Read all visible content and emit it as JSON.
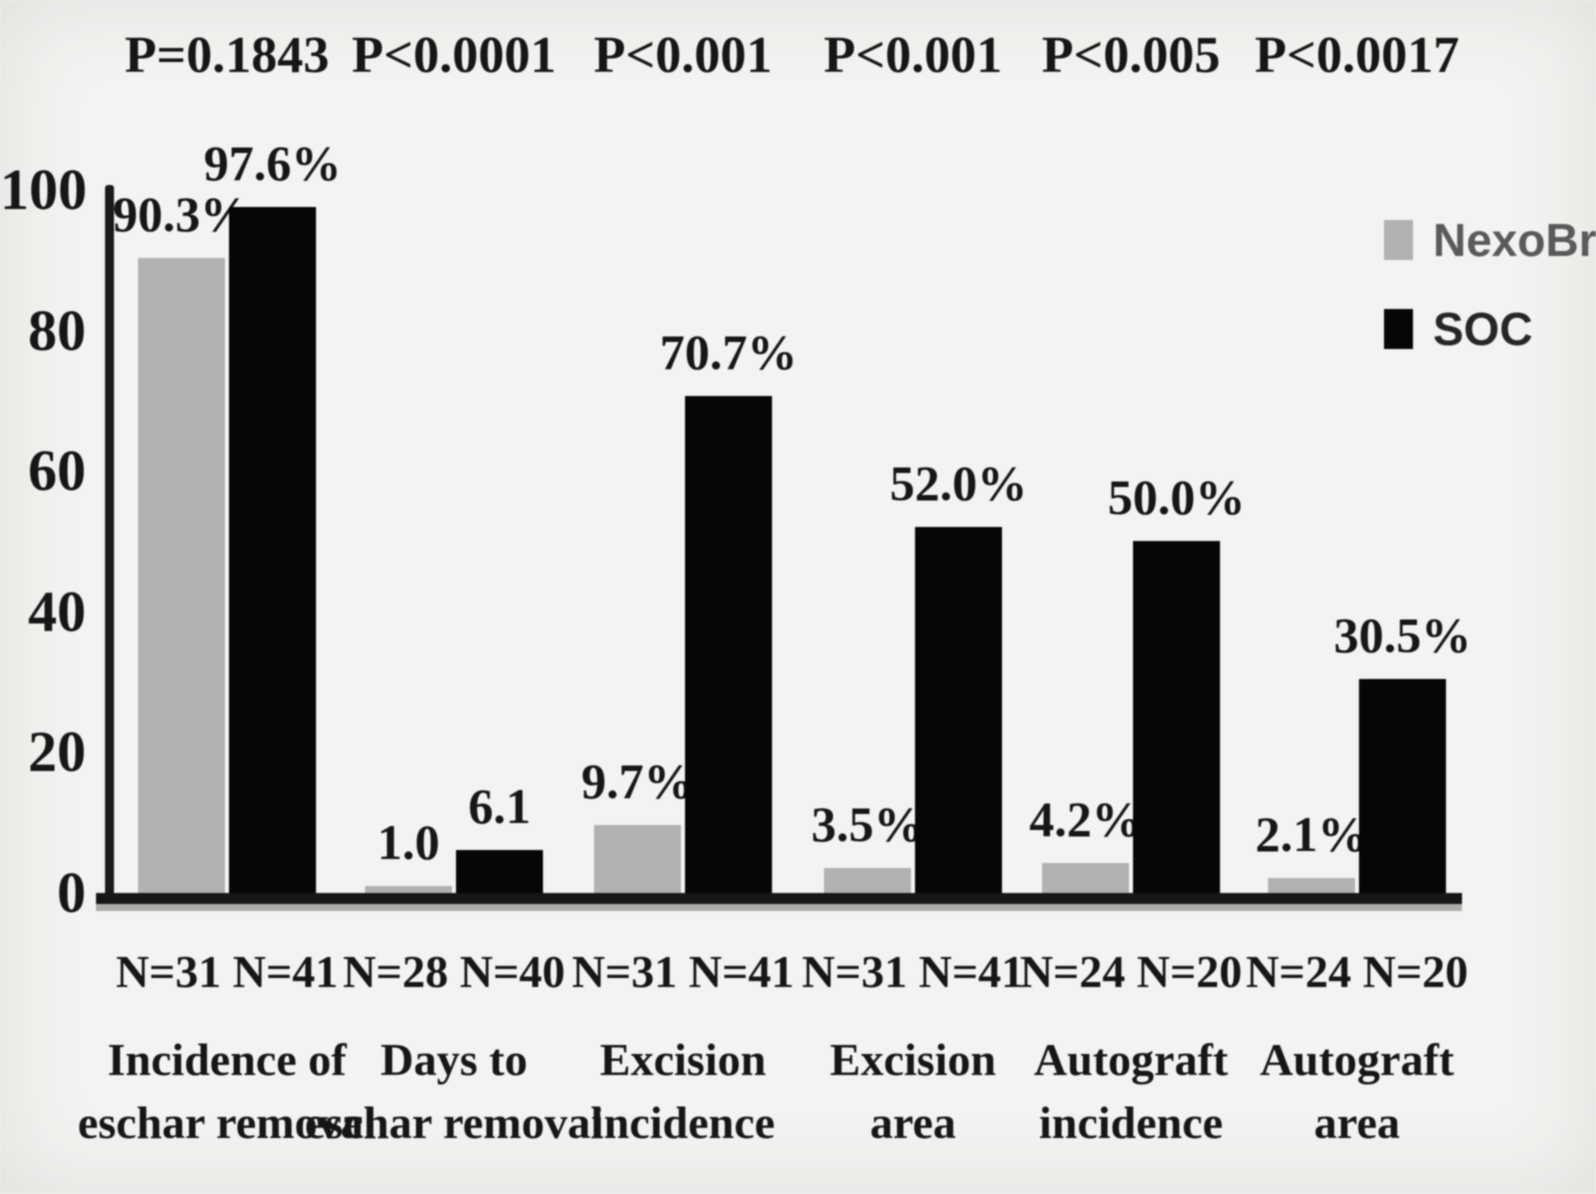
{
  "chart_data": {
    "type": "bar",
    "title": "",
    "xlabel": "",
    "ylabel": "",
    "ylim": [
      0,
      100
    ],
    "grid": false,
    "y_axis": {
      "ticks": [
        100,
        80,
        60,
        40,
        20,
        0
      ]
    },
    "categories": [
      "Incidence of\neschar removal",
      "Days to\neschar removal",
      "Excision\nincidence",
      "Excision\narea",
      "Autograft\nincidence",
      "Autograft\narea"
    ],
    "n_labels": [
      "N=31 N=41",
      "N=28 N=40",
      "N=31 N=41",
      "N=31 N=41",
      "N=24 N=20",
      "N=24 N=20"
    ],
    "p_values": [
      "P=0.1843",
      "P<0.0001",
      "P<0.001",
      "P<0.001",
      "P<0.005",
      "P<0.0017"
    ],
    "series": [
      {
        "name": "NexoBrid",
        "color": "#b2b1af",
        "values": [
          90.3,
          1.0,
          9.7,
          3.5,
          4.2,
          2.1
        ],
        "value_labels": [
          "90.3%",
          "1.0",
          "9.7%",
          "3.5%",
          "4.2%",
          "2.1%"
        ]
      },
      {
        "name": "SOC",
        "color": "#060606",
        "values": [
          97.6,
          6.1,
          70.7,
          52.0,
          50.0,
          30.5
        ],
        "value_labels": [
          "97.6%",
          "6.1",
          "70.7%",
          "52.0%",
          "50.0%",
          "30.5%"
        ]
      }
    ],
    "legend": {
      "position": "top-right",
      "items": [
        {
          "label": "NexoBrid",
          "color": "#b2b1af",
          "text_color": "#5a5a5a"
        },
        {
          "label": "SOC",
          "color": "#060606",
          "text_color": "#262626"
        }
      ]
    }
  }
}
